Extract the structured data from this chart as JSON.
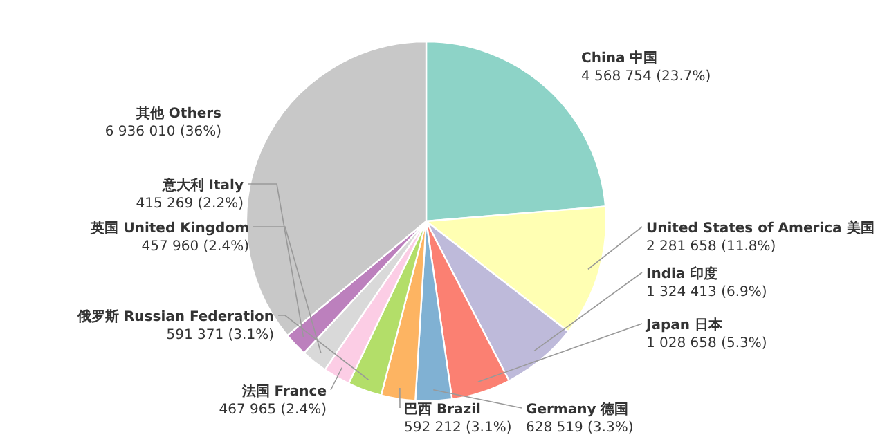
{
  "chart_data": {
    "type": "pie",
    "categories": [
      "China 中国",
      "United States of America 美国",
      "India 印度",
      "Japan 日本",
      "Germany 德国",
      "巴西 Brazil",
      "俄罗斯 Russian Federation",
      "法国 France",
      "英国 United Kingdom",
      "意大利 Italy",
      "其他 Others"
    ],
    "values": [
      4568754,
      2281658,
      1324413,
      1028658,
      628519,
      592212,
      591371,
      467965,
      457960,
      415269,
      6936010
    ],
    "value_labels": [
      "4 568 754 (23.7%)",
      "2 281 658 (11.8%)",
      "1 324 413 (6.9%)",
      "1 028 658 (5.3%)",
      "628 519 (3.3%)",
      "592 212 (3.1%)",
      "591 371 (3.1%)",
      "467 965 (2.4%)",
      "457 960 (2.4%)",
      "415 269 (2.2%)",
      "6 936 010 (36%)"
    ],
    "colors": [
      "#8dd3c7",
      "#ffffb3",
      "#bebada",
      "#fb8072",
      "#80b1d3",
      "#fdb462",
      "#b3de69",
      "#fccde5",
      "#d9d9d9",
      "#bc80bd",
      "#c8c8c8"
    ]
  }
}
